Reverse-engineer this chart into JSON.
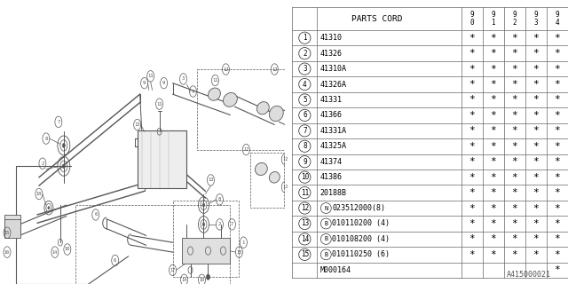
{
  "bg_color": "#ffffff",
  "diagram_code": "A415000021",
  "lc": "#555555",
  "table": {
    "header_col": "PARTS CORD",
    "year_cols": [
      "9\n0",
      "9\n1",
      "9\n2",
      "9\n3",
      "9\n4"
    ],
    "rows": [
      {
        "num": "1",
        "circle": true,
        "prefix": "",
        "part": "41310",
        "stars": [
          true,
          true,
          true,
          true,
          true
        ]
      },
      {
        "num": "2",
        "circle": true,
        "prefix": "",
        "part": "41326",
        "stars": [
          true,
          true,
          true,
          true,
          true
        ]
      },
      {
        "num": "3",
        "circle": true,
        "prefix": "",
        "part": "41310A",
        "stars": [
          true,
          true,
          true,
          true,
          true
        ]
      },
      {
        "num": "4",
        "circle": true,
        "prefix": "",
        "part": "41326A",
        "stars": [
          true,
          true,
          true,
          true,
          true
        ]
      },
      {
        "num": "5",
        "circle": true,
        "prefix": "",
        "part": "41331",
        "stars": [
          true,
          true,
          true,
          true,
          true
        ]
      },
      {
        "num": "6",
        "circle": true,
        "prefix": "",
        "part": "41366",
        "stars": [
          true,
          true,
          true,
          true,
          true
        ]
      },
      {
        "num": "7",
        "circle": true,
        "prefix": "",
        "part": "41331A",
        "stars": [
          true,
          true,
          true,
          true,
          true
        ]
      },
      {
        "num": "8",
        "circle": true,
        "prefix": "",
        "part": "41325A",
        "stars": [
          true,
          true,
          true,
          true,
          true
        ]
      },
      {
        "num": "9",
        "circle": true,
        "prefix": "",
        "part": "41374",
        "stars": [
          true,
          true,
          true,
          true,
          true
        ]
      },
      {
        "num": "10",
        "circle": true,
        "prefix": "",
        "part": "41386",
        "stars": [
          true,
          true,
          true,
          true,
          true
        ]
      },
      {
        "num": "11",
        "circle": true,
        "prefix": "",
        "part": "20188B",
        "stars": [
          true,
          true,
          true,
          true,
          true
        ]
      },
      {
        "num": "12",
        "circle": true,
        "prefix": "N",
        "part": "023512000(8)",
        "stars": [
          true,
          true,
          true,
          true,
          true
        ]
      },
      {
        "num": "13",
        "circle": true,
        "prefix": "B",
        "part": "010110200 (4)",
        "stars": [
          true,
          true,
          true,
          true,
          true
        ]
      },
      {
        "num": "14",
        "circle": true,
        "prefix": "B",
        "part": "010108200 (4)",
        "stars": [
          true,
          true,
          true,
          true,
          true
        ]
      },
      {
        "num": "15",
        "circle": true,
        "prefix": "B",
        "part": "010110250 (6)",
        "stars": [
          true,
          true,
          true,
          true,
          true
        ]
      },
      {
        "num": "",
        "circle": false,
        "prefix": "",
        "part": "M000164",
        "stars": [
          false,
          false,
          false,
          false,
          true
        ]
      }
    ]
  }
}
